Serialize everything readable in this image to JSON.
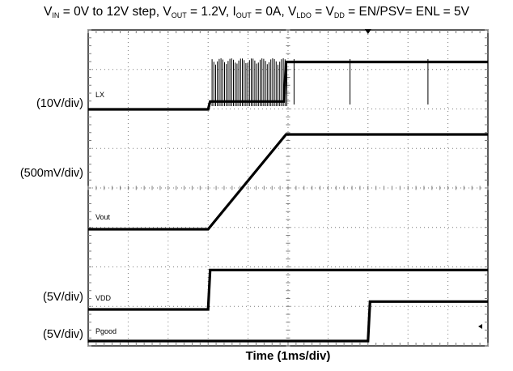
{
  "chart_data": {
    "type": "line",
    "title_parts": [
      {
        "t": "V"
      },
      {
        "s": "IN"
      },
      {
        "t": " = 0V to 12V step, V"
      },
      {
        "s": "OUT"
      },
      {
        "t": " = 1.2V, I"
      },
      {
        "s": "OUT"
      },
      {
        "t": " = 0A, V"
      },
      {
        "s": "LDO"
      },
      {
        "t": " = V"
      },
      {
        "s": "DD"
      },
      {
        "t": " = EN/PSV= ENL = 5V"
      }
    ],
    "xlabel": "Time (1ms/div)",
    "time_per_div_ms": 1,
    "divisions": {
      "x": 10,
      "y": 8
    },
    "channel_scales": [
      {
        "channel": "LX",
        "scale": "(10V/div)"
      },
      {
        "channel": "Vout",
        "scale": "(500mV/div)"
      },
      {
        "channel": "VDD",
        "scale": "(5V/div)"
      },
      {
        "channel": "Pgood",
        "scale": "(5V/div)"
      }
    ],
    "series": [
      {
        "name": "LX",
        "unit": "V",
        "x": [
          0,
          3.0,
          3.05,
          4.9,
          4.95,
          10
        ],
        "y": [
          0,
          0,
          2,
          2,
          12,
          12
        ],
        "switching_burst_ms": [
          3.1,
          5.0
        ]
      },
      {
        "name": "Vout",
        "unit": "V",
        "x": [
          0,
          3.0,
          4.95,
          10
        ],
        "y": [
          0,
          0,
          1.2,
          1.2
        ]
      },
      {
        "name": "VDD",
        "unit": "V",
        "x": [
          0,
          3.0,
          3.05,
          10
        ],
        "y": [
          0,
          0,
          5,
          5
        ]
      },
      {
        "name": "Pgood",
        "unit": "V",
        "x": [
          0,
          7.0,
          7.05,
          10
        ],
        "y": [
          0,
          0,
          5,
          5
        ]
      }
    ],
    "colors": {
      "trace": "#000000",
      "grid": "#7a7a7a",
      "background": "#ffffff"
    }
  }
}
